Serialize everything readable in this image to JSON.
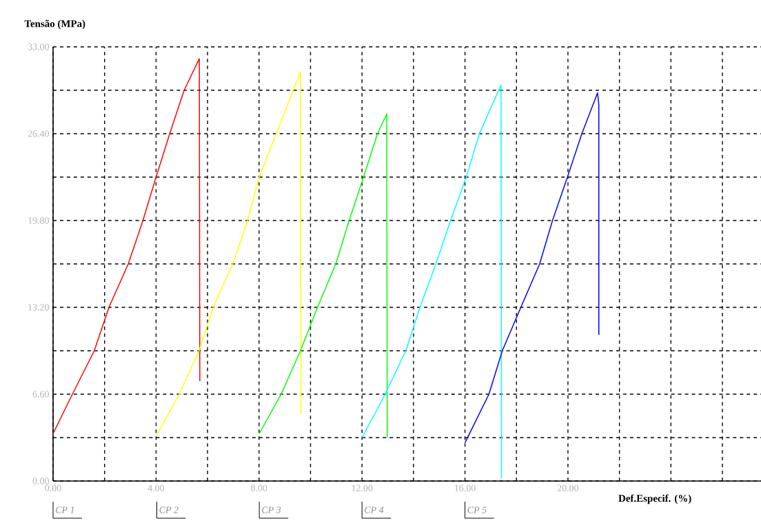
{
  "chart_data": {
    "type": "line",
    "ylabel": "Tensão (MPa)",
    "xlabel": "Def.Especif. (%)",
    "xlim": [
      0,
      27.5
    ],
    "ylim": [
      0,
      33
    ],
    "xticks": [
      {
        "value": 0,
        "label": "0.00"
      },
      {
        "value": 2,
        "label": null
      },
      {
        "value": 4,
        "label": "4.00"
      },
      {
        "value": 6,
        "label": null
      },
      {
        "value": 8,
        "label": "8.00"
      },
      {
        "value": 10,
        "label": null
      },
      {
        "value": 12,
        "label": "12.00"
      },
      {
        "value": 14,
        "label": null
      },
      {
        "value": 16,
        "label": "16.00"
      },
      {
        "value": 18,
        "label": null
      },
      {
        "value": 20,
        "label": "20.00"
      },
      {
        "value": 22,
        "label": null
      },
      {
        "value": 24,
        "label": null
      },
      {
        "value": 26,
        "label": null
      }
    ],
    "yticks": [
      {
        "value": 0,
        "label": "0.00"
      },
      {
        "value": 3.3,
        "label": null
      },
      {
        "value": 6.6,
        "label": "6.60"
      },
      {
        "value": 9.9,
        "label": null
      },
      {
        "value": 13.2,
        "label": "13.20"
      },
      {
        "value": 16.5,
        "label": null
      },
      {
        "value": 19.8,
        "label": "19.80"
      },
      {
        "value": 23.1,
        "label": null
      },
      {
        "value": 26.4,
        "label": "26.40"
      },
      {
        "value": 29.7,
        "label": null
      },
      {
        "value": 33,
        "label": "33.00"
      }
    ],
    "grid": true,
    "line_style": "solid",
    "marker": "none",
    "annotations": [
      "CP 1",
      "CP 2",
      "CP 3",
      "CP 4",
      "CP 5"
    ],
    "series": [
      {
        "color": "#ff0000",
        "x": [
          0,
          0.75,
          1.6,
          2.17,
          2.92,
          3.49,
          4.0,
          4.53,
          5.09,
          5.68,
          5.7
        ],
        "values": [
          3.6,
          6.6,
          9.9,
          13.2,
          16.5,
          19.8,
          23.1,
          26.4,
          29.7,
          32.1,
          7.6
        ]
      },
      {
        "color": "#ffff00",
        "x": [
          4.03,
          4.9,
          5.67,
          6.22,
          6.98,
          7.55,
          8.01,
          8.67,
          9.33,
          9.61,
          9.63
        ],
        "values": [
          3.5,
          6.6,
          9.9,
          13.2,
          16.5,
          19.8,
          23.1,
          26.4,
          29.7,
          31.1,
          5.1
        ]
      },
      {
        "color": "#00ff00",
        "x": [
          8.01,
          8.86,
          9.61,
          10.27,
          10.98,
          11.5,
          12.06,
          12.6,
          12.96,
          12.98
        ],
        "values": [
          3.6,
          6.6,
          9.9,
          13.2,
          16.5,
          19.8,
          23.1,
          26.4,
          27.9,
          3.3
        ]
      },
      {
        "color": "#00ffff",
        "x": [
          12.0,
          12.9,
          13.7,
          14.25,
          14.87,
          15.44,
          16.05,
          16.56,
          17.4,
          17.42
        ],
        "values": [
          3.3,
          6.6,
          9.9,
          13.2,
          16.5,
          19.8,
          23.1,
          26.4,
          30.1,
          0.2
        ]
      },
      {
        "color": "#0000ff",
        "x": [
          16.0,
          16.93,
          17.45,
          18.17,
          18.9,
          19.4,
          19.98,
          20.54,
          21.15,
          21.2,
          21.2
        ],
        "values": [
          2.9,
          6.6,
          9.9,
          13.2,
          16.5,
          19.8,
          23.1,
          26.4,
          29.5,
          28.6,
          11.1
        ]
      }
    ]
  }
}
